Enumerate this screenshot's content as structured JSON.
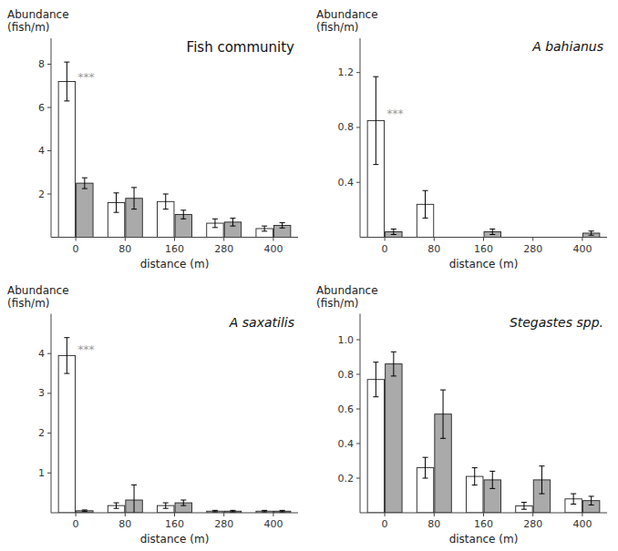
{
  "chart_data": [
    {
      "type": "bar",
      "title": "Fish community",
      "xlabel": "distance (m)",
      "ylabel": "Abundance\n(fish/m)",
      "categories": [
        "0",
        "80",
        "160",
        "280",
        "400"
      ],
      "series": [
        {
          "color": "#ffffff",
          "values": [
            7.2,
            1.6,
            1.65,
            0.65,
            0.4
          ],
          "errors": [
            0.9,
            0.45,
            0.35,
            0.2,
            0.12
          ]
        },
        {
          "color": "#aaaaaa",
          "values": [
            2.5,
            1.8,
            1.05,
            0.7,
            0.55
          ],
          "errors": [
            0.25,
            0.5,
            0.2,
            0.18,
            0.12
          ]
        }
      ],
      "ylim": [
        0,
        9.2
      ],
      "yticks": [
        2,
        4,
        6,
        8
      ],
      "grid": false,
      "annotations": [
        {
          "text": "***",
          "category": "0",
          "y": 7.4
        }
      ]
    },
    {
      "type": "bar",
      "title": "A bahianus",
      "xlabel": "distance (m)",
      "ylabel": "Abundance\n(fish/m)",
      "categories": [
        "0",
        "80",
        "160",
        "280",
        "400"
      ],
      "series": [
        {
          "color": "#ffffff",
          "values": [
            0.85,
            0.24,
            0.0,
            0.0,
            0.0
          ],
          "errors": [
            0.32,
            0.1,
            0.0,
            0.0,
            0.0
          ]
        },
        {
          "color": "#aaaaaa",
          "values": [
            0.04,
            0.0,
            0.04,
            0.0,
            0.03
          ],
          "errors": [
            0.02,
            0.0,
            0.02,
            0.0,
            0.015
          ]
        }
      ],
      "ylim": [
        0,
        1.45
      ],
      "yticks": [
        0.4,
        0.8,
        1.2
      ],
      "grid": false,
      "annotations": [
        {
          "text": "***",
          "category": "0",
          "y": 0.9
        }
      ]
    },
    {
      "type": "bar",
      "title": "A saxatilis",
      "xlabel": "distance (m)",
      "ylabel": "Abundance\n(fish/m)",
      "categories": [
        "0",
        "80",
        "160",
        "280",
        "400"
      ],
      "series": [
        {
          "color": "#ffffff",
          "values": [
            3.95,
            0.18,
            0.18,
            0.04,
            0.04
          ],
          "errors": [
            0.45,
            0.07,
            0.07,
            0.02,
            0.02
          ]
        },
        {
          "color": "#aaaaaa",
          "values": [
            0.05,
            0.32,
            0.25,
            0.04,
            0.04
          ],
          "errors": [
            0.02,
            0.38,
            0.07,
            0.02,
            0.02
          ]
        }
      ],
      "ylim": [
        0,
        5.0
      ],
      "yticks": [
        1,
        2,
        3,
        4
      ],
      "grid": false,
      "annotations": [
        {
          "text": "***",
          "category": "0",
          "y": 4.1
        }
      ]
    },
    {
      "type": "bar",
      "title": "Stegastes spp.",
      "xlabel": "distance (m)",
      "ylabel": "Abundance\n(fish/m)",
      "categories": [
        "0",
        "80",
        "160",
        "280",
        "400"
      ],
      "series": [
        {
          "color": "#ffffff",
          "values": [
            0.77,
            0.26,
            0.21,
            0.04,
            0.08
          ],
          "errors": [
            0.1,
            0.06,
            0.05,
            0.02,
            0.03
          ]
        },
        {
          "color": "#aaaaaa",
          "values": [
            0.86,
            0.57,
            0.19,
            0.19,
            0.07
          ],
          "errors": [
            0.07,
            0.14,
            0.05,
            0.08,
            0.025
          ]
        }
      ],
      "ylim": [
        0,
        1.15
      ],
      "yticks": [
        0.2,
        0.4,
        0.6,
        0.8,
        {
          "value": 1.0,
          "label": "1.0"
        }
      ],
      "grid": false
    }
  ]
}
